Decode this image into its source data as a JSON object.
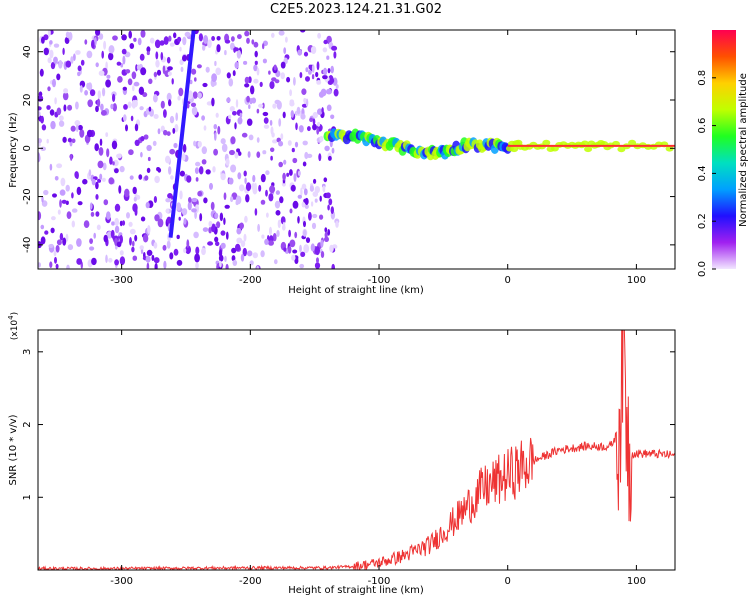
{
  "title": "C2E5.2023.124.21.31.G02",
  "chart_data": [
    {
      "type": "heatmap",
      "xlabel": "Height of straight line (km)",
      "ylabel": "Frequency (Hz)",
      "xlim": [
        -365,
        130
      ],
      "ylim": [
        -50,
        49
      ],
      "xticks": [
        -300,
        -200,
        -100,
        0,
        100
      ],
      "yticks": [
        -40,
        -20,
        0,
        20,
        40
      ],
      "colorbar": {
        "label": "Normalized spectral amplitude",
        "range": [
          0,
          1
        ],
        "ticks": [
          "0.0",
          "0.2",
          "0.4",
          "0.6",
          "0.8"
        ],
        "colormap": [
          "#f2e6ff",
          "#a020f0",
          "#2010ff",
          "#00a0ff",
          "#00e0c0",
          "#20ff20",
          "#c0ff00",
          "#ffd000",
          "#ff5000",
          "#ff0050"
        ]
      },
      "noise_region_x": [
        -365,
        -140
      ],
      "streak": {
        "x": [
          -262,
          -244
        ],
        "y": [
          -37,
          49
        ]
      },
      "ridge": [
        {
          "x": -140,
          "y": 5
        },
        {
          "x": -120,
          "y": 5
        },
        {
          "x": -100,
          "y": 3
        },
        {
          "x": -80,
          "y": 0
        },
        {
          "x": -60,
          "y": -2
        },
        {
          "x": -45,
          "y": -1
        },
        {
          "x": -30,
          "y": 2
        },
        {
          "x": -10,
          "y": 1
        },
        {
          "x": 10,
          "y": 1
        },
        {
          "x": 50,
          "y": 1
        },
        {
          "x": 80,
          "y": 1
        },
        {
          "x": 130,
          "y": 1
        }
      ]
    },
    {
      "type": "line",
      "xlabel": "Height of straight line (km)",
      "ylabel": "SNR (10 * v/v)",
      "yscale_note": "(x10",
      "yscale_exp": "4",
      "xlim": [
        -365,
        130
      ],
      "ylim": [
        0,
        3.3
      ],
      "xticks": [
        -300,
        -200,
        -100,
        0,
        100
      ],
      "yticks": [
        1,
        2,
        3
      ],
      "color": "#ee3333",
      "series": [
        {
          "x": [
            -365,
            -300,
            -200,
            -140,
            -120,
            -100,
            -80,
            -60,
            -40,
            -20,
            0,
            20,
            40,
            60,
            80,
            86,
            90,
            94,
            110,
            130
          ],
          "y": [
            0.02,
            0.02,
            0.03,
            0.03,
            0.05,
            0.1,
            0.2,
            0.35,
            0.7,
            1.1,
            1.3,
            1.5,
            1.65,
            1.7,
            1.7,
            1.9,
            3.1,
            1.6,
            1.6,
            1.58
          ]
        }
      ]
    }
  ]
}
